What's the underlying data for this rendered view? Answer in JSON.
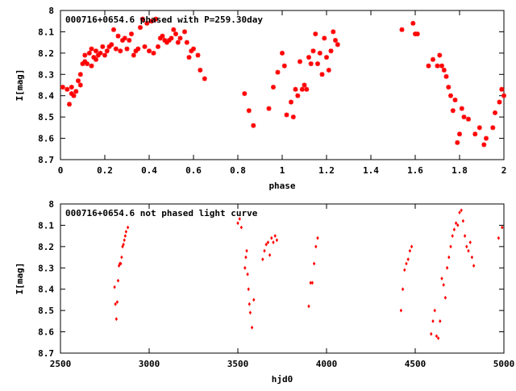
{
  "colors": {
    "points": "#ff0000",
    "axes": "#000000",
    "background": "#ffffff"
  },
  "chart_data": [
    {
      "type": "scatter",
      "title": "000716+0654.6 phased with P=259.30day",
      "xlabel": "phase",
      "ylabel": "I[mag]",
      "xlim": [
        0,
        2
      ],
      "ylim": [
        8.7,
        8
      ],
      "y_inverted": true,
      "grid": false,
      "xticks": [
        "0",
        "0.2",
        "0.4",
        "0.6",
        "0.8",
        "1",
        "1.2",
        "1.4",
        "1.6",
        "1.8",
        "2"
      ],
      "yticks": [
        "8",
        "8.1",
        "8.2",
        "8.3",
        "8.4",
        "8.5",
        "8.6",
        "8.7"
      ],
      "marker": "star",
      "series": [
        {
          "x": [
            0.01,
            0.03,
            0.04,
            0.05,
            0.05,
            0.06,
            0.07,
            0.08,
            0.09,
            0.09,
            0.1,
            0.11,
            0.11,
            0.12,
            0.13,
            0.14,
            0.14,
            0.15,
            0.16,
            0.16,
            0.17,
            0.18,
            0.19,
            0.2,
            0.21,
            0.22,
            0.23,
            0.24,
            0.25,
            0.26,
            0.27,
            0.28,
            0.29,
            0.3,
            0.31,
            0.32,
            0.33,
            0.34,
            0.35,
            0.36,
            0.37,
            0.38,
            0.39,
            0.4,
            0.41,
            0.42,
            0.43,
            0.44,
            0.45,
            0.46,
            0.47,
            0.48,
            0.49,
            0.5,
            0.51,
            0.52,
            0.53,
            0.54,
            0.56,
            0.57,
            0.58,
            0.59,
            0.6,
            0.62,
            0.63,
            0.65,
            0.83,
            0.85,
            0.87,
            0.94,
            0.96,
            0.98,
            1.0,
            1.01,
            1.02,
            1.04,
            1.05,
            1.06,
            1.07,
            1.08,
            1.09,
            1.1,
            1.11,
            1.12,
            1.13,
            1.14,
            1.15,
            1.16,
            1.17,
            1.18,
            1.19,
            1.2,
            1.21,
            1.22,
            1.23,
            1.24,
            1.25,
            1.54,
            1.59,
            1.6,
            1.61,
            1.66,
            1.68,
            1.7,
            1.71,
            1.72,
            1.73,
            1.74,
            1.75,
            1.76,
            1.77,
            1.78,
            1.79,
            1.8,
            1.81,
            1.82,
            1.84,
            1.87,
            1.89,
            1.91,
            1.92,
            1.95,
            1.96,
            1.98,
            1.99,
            2.0
          ],
          "y": [
            8.36,
            8.37,
            8.44,
            8.39,
            8.36,
            8.4,
            8.38,
            8.33,
            8.3,
            8.35,
            8.25,
            8.21,
            8.24,
            8.25,
            8.2,
            8.26,
            8.18,
            8.22,
            8.23,
            8.19,
            8.21,
            8.2,
            8.17,
            8.21,
            8.19,
            8.17,
            8.16,
            8.09,
            8.18,
            8.12,
            8.19,
            8.14,
            8.13,
            8.18,
            8.14,
            8.11,
            8.21,
            8.19,
            8.18,
            8.08,
            8.04,
            8.17,
            8.06,
            8.19,
            8.05,
            8.2,
            8.04,
            8.17,
            8.13,
            8.12,
            8.14,
            8.15,
            8.14,
            8.13,
            8.09,
            8.11,
            8.15,
            8.13,
            8.1,
            8.15,
            8.22,
            8.19,
            8.18,
            8.21,
            8.28,
            8.32,
            8.39,
            8.47,
            8.54,
            8.46,
            8.36,
            8.29,
            8.2,
            8.26,
            8.49,
            8.43,
            8.5,
            8.37,
            8.4,
            8.24,
            8.37,
            8.35,
            8.37,
            8.22,
            8.25,
            8.19,
            8.11,
            8.25,
            8.2,
            8.3,
            8.13,
            8.22,
            8.28,
            8.19,
            8.1,
            8.14,
            8.16,
            8.09,
            8.06,
            8.11,
            8.11,
            8.26,
            8.23,
            8.26,
            8.21,
            8.26,
            8.28,
            8.31,
            8.36,
            8.4,
            8.47,
            8.42,
            8.62,
            8.58,
            8.46,
            8.5,
            8.51,
            8.58,
            8.55,
            8.63,
            8.6,
            8.55,
            8.48,
            8.43,
            8.37,
            8.4
          ]
        }
      ]
    },
    {
      "type": "scatter",
      "title": "000716+0654.6 not phased light curve",
      "xlabel": "hjd0",
      "ylabel": "I[mag]",
      "xlim": [
        2500,
        5000
      ],
      "ylim": [
        8.7,
        8
      ],
      "y_inverted": true,
      "grid": false,
      "xticks": [
        "2500",
        "3000",
        "3500",
        "4000",
        "4500",
        "5000"
      ],
      "yticks": [
        "8",
        "8.1",
        "8.2",
        "8.3",
        "8.4",
        "8.5",
        "8.6",
        "8.7"
      ],
      "marker": "diamond",
      "series": [
        {
          "x": [
            2805,
            2810,
            2815,
            2820,
            2825,
            2830,
            2835,
            2840,
            2845,
            2850,
            2855,
            2860,
            2865,
            2870,
            2880,
            3500,
            3510,
            3520,
            3540,
            3545,
            3550,
            3555,
            3560,
            3565,
            3570,
            3580,
            3590,
            3640,
            3650,
            3660,
            3670,
            3680,
            3690,
            3700,
            3710,
            3720,
            3900,
            3910,
            3920,
            3930,
            3940,
            3950,
            4420,
            4430,
            4440,
            4450,
            4460,
            4470,
            4480,
            4590,
            4600,
            4610,
            4620,
            4630,
            4640,
            4650,
            4660,
            4670,
            4680,
            4690,
            4700,
            4710,
            4720,
            4730,
            4740,
            4750,
            4760,
            4770,
            4780,
            4790,
            4800,
            4810,
            4820,
            4830,
            4970,
            4990
          ],
          "y": [
            8.39,
            8.47,
            8.54,
            8.46,
            8.36,
            8.29,
            8.28,
            8.28,
            8.25,
            8.2,
            8.19,
            8.17,
            8.15,
            8.13,
            8.11,
            8.09,
            8.07,
            8.11,
            8.3,
            8.25,
            8.22,
            8.33,
            8.4,
            8.47,
            8.51,
            8.58,
            8.45,
            8.26,
            8.22,
            8.19,
            8.18,
            8.24,
            8.16,
            8.18,
            8.15,
            8.17,
            8.48,
            8.37,
            8.37,
            8.28,
            8.2,
            8.16,
            8.5,
            8.4,
            8.31,
            8.28,
            8.26,
            8.22,
            8.2,
            8.61,
            8.55,
            8.5,
            8.62,
            8.63,
            8.55,
            8.35,
            8.38,
            8.44,
            8.3,
            8.25,
            8.2,
            8.15,
            8.12,
            8.09,
            8.1,
            8.04,
            8.03,
            8.08,
            8.15,
            8.2,
            8.22,
            8.18,
            8.25,
            8.29,
            8.16,
            8.11
          ]
        }
      ]
    }
  ]
}
